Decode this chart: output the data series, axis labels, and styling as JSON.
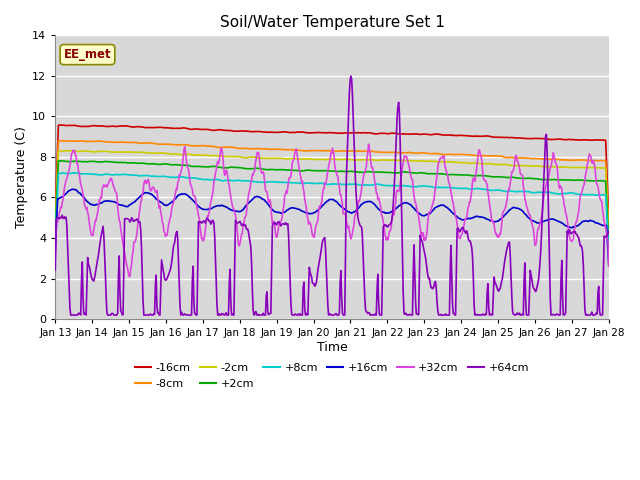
{
  "title": "Soil/Water Temperature Set 1",
  "xlabel": "Time",
  "ylabel": "Temperature (C)",
  "ylim": [
    0,
    14
  ],
  "xlim": [
    0,
    15
  ],
  "x_tick_labels": [
    "Jan 13",
    "Jan 14",
    "Jan 15",
    "Jan 16",
    "Jan 17",
    "Jan 18",
    "Jan 19",
    "Jan 20",
    "Jan 21",
    "Jan 22",
    "Jan 23",
    "Jan 24",
    "Jan 25",
    "Jan 26",
    "Jan 27",
    "Jan 28"
  ],
  "background_color": "#d8d8d8",
  "plot_bg_color": "#d8d8d8",
  "figure_bg": "#ffffff",
  "grid_color": "#ffffff",
  "annotation_text": "EE_met",
  "annotation_bg": "#ffffcc",
  "annotation_border": "#888800",
  "series": {
    "-16cm": {
      "color": "#cc0000",
      "lw": 1.2
    },
    "-8cm": {
      "color": "#ff8800",
      "lw": 1.2
    },
    "-2cm": {
      "color": "#cccc00",
      "lw": 1.2
    },
    "+2cm": {
      "color": "#00aa00",
      "lw": 1.2
    },
    "+8cm": {
      "color": "#00cccc",
      "lw": 1.2
    },
    "+16cm": {
      "color": "#0000cc",
      "lw": 1.2
    },
    "+32cm": {
      "color": "#dd44dd",
      "lw": 1.2
    },
    "+64cm": {
      "color": "#8800bb",
      "lw": 1.2
    }
  },
  "legend_row1": [
    "-16cm",
    "-8cm",
    "-2cm",
    "+2cm",
    "+8cm",
    "+16cm"
  ],
  "legend_row2": [
    "+32cm",
    "+64cm"
  ]
}
